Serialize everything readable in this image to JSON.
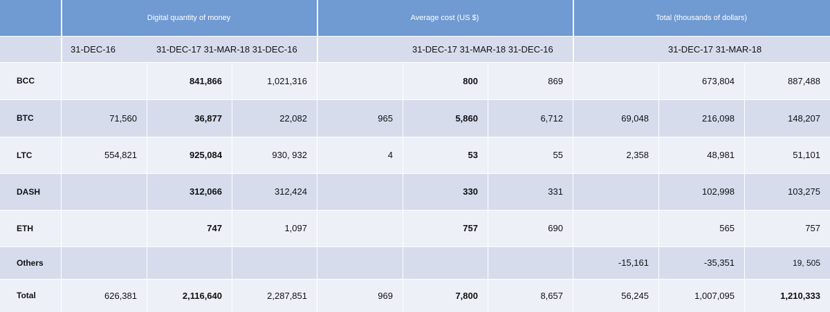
{
  "header": {
    "group1": "Digital quantity of money",
    "group2": "Average cost (US $)",
    "group3": "Total (thousands of dollars)"
  },
  "subheader": {
    "g1_first": "31-DEC-16",
    "g1_rest": "31-DEC-17 31-MAR-18 31-DEC-16",
    "g2_rest": "31-DEC-17 31-MAR-18 31-DEC-16",
    "g3_rest": "31-DEC-17 31-MAR-18"
  },
  "rows": [
    {
      "label": "BCC",
      "cells": [
        "",
        "841,866",
        "1,021,316",
        "",
        "800",
        "869",
        "",
        "673,804",
        "887,488"
      ]
    },
    {
      "label": "BTC",
      "cells": [
        "71,560",
        "36,877",
        "22,082",
        "965",
        "5,860",
        "6,712",
        "69,048",
        "216,098",
        "148,207"
      ]
    },
    {
      "label": "LTC",
      "cells": [
        "554,821",
        "925,084",
        "930, 932",
        "4",
        "53",
        "55",
        "2,358",
        "48,981",
        "51,101"
      ]
    },
    {
      "label": "DASH",
      "cells": [
        "",
        "312,066",
        "312,424",
        "",
        "330",
        "331",
        "",
        "102,998",
        "103,275"
      ]
    },
    {
      "label": "ETH",
      "cells": [
        "",
        "747",
        "1,097",
        "",
        "757",
        "690",
        "",
        "565",
        "757"
      ]
    },
    {
      "label": "Others",
      "cells": [
        "",
        "",
        "",
        "",
        "",
        "",
        "-15,161",
        "-35,351",
        "19, 505"
      ]
    },
    {
      "label": "Total",
      "cells": [
        "626,381",
        "2,116,640",
        "2,287,851",
        "969",
        "7,800",
        "8,657",
        "56,245",
        "1,007,095",
        "1,210,333"
      ]
    }
  ],
  "colors": {
    "header_bg": "#6f9ad2",
    "band_dark": "#d6dcec",
    "band_light": "#edf0f7"
  }
}
